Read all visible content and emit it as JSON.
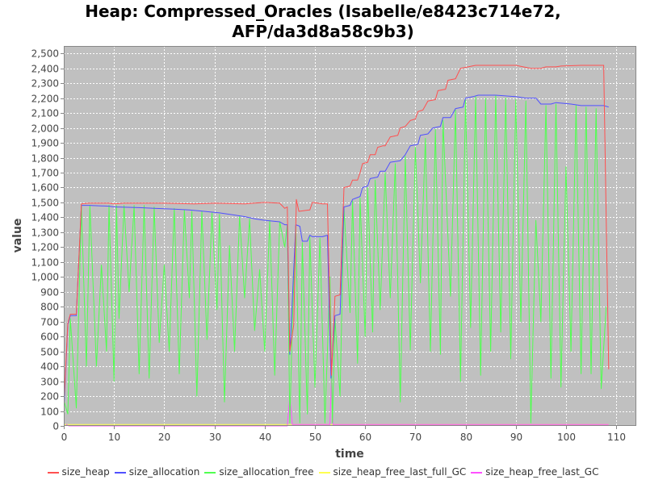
{
  "colors": {
    "size_heap": "#ff5050",
    "size_allocation": "#5050ff",
    "size_allocation_free": "#50ff50",
    "size_heap_free_last_full_GC": "#ffff50",
    "size_heap_free_last_GC": "#ff50ff",
    "plot_background": "#c0c0c0",
    "grid": "#ffffff"
  },
  "chart_data": {
    "type": "line",
    "title_lines": [
      "Heap: Compressed_Oracles (Isabelle/e8423c714e72,",
      "AFP/da3d8a58c9b3)"
    ],
    "xlabel": "time",
    "ylabel": "value",
    "xlim": [
      0,
      114
    ],
    "ylim": [
      0,
      2550
    ],
    "xticks": [
      0,
      10,
      20,
      30,
      40,
      50,
      60,
      70,
      80,
      90,
      100,
      110
    ],
    "xtick_labels": [
      "0",
      "10",
      "20",
      "30",
      "40",
      "50",
      "60",
      "70",
      "80",
      "90",
      "100",
      "110"
    ],
    "yticks": [
      0,
      100,
      200,
      300,
      400,
      500,
      600,
      700,
      800,
      900,
      1000,
      1100,
      1200,
      1300,
      1400,
      1500,
      1600,
      1700,
      1800,
      1900,
      2000,
      2100,
      2200,
      2300,
      2400,
      2500
    ],
    "ytick_labels": [
      "0",
      "100",
      "200",
      "300",
      "400",
      "500",
      "600",
      "700",
      "800",
      "900",
      "1,000",
      "1,100",
      "1,200",
      "1,300",
      "1,400",
      "1,500",
      "1,600",
      "1,700",
      "1,800",
      "1,900",
      "2,000",
      "2,100",
      "2,200",
      "2,300",
      "2,400",
      "2,500"
    ],
    "grid": true,
    "legend_position": "bottom",
    "series": [
      {
        "name": "size_heap",
        "points": [
          [
            0.1,
            200
          ],
          [
            0.8,
            690
          ],
          [
            1.3,
            750
          ],
          [
            2.5,
            750
          ],
          [
            3.5,
            1490
          ],
          [
            5,
            1495
          ],
          [
            9,
            1495
          ],
          [
            10,
            1490
          ],
          [
            12,
            1495
          ],
          [
            20,
            1495
          ],
          [
            26,
            1490
          ],
          [
            30,
            1495
          ],
          [
            36,
            1490
          ],
          [
            40,
            1500
          ],
          [
            43,
            1495
          ],
          [
            44,
            1460
          ],
          [
            44.5,
            1470
          ],
          [
            45,
            500
          ],
          [
            45.8,
            680
          ],
          [
            46.3,
            1520
          ],
          [
            46.8,
            1440
          ],
          [
            49,
            1450
          ],
          [
            49.5,
            1500
          ],
          [
            51.5,
            1490
          ],
          [
            52.5,
            1490
          ],
          [
            53.3,
            340
          ],
          [
            54,
            870
          ],
          [
            55,
            880
          ],
          [
            55.8,
            1600
          ],
          [
            57,
            1610
          ],
          [
            57.5,
            1650
          ],
          [
            58.5,
            1650
          ],
          [
            59,
            1700
          ],
          [
            59.5,
            1760
          ],
          [
            60.5,
            1770
          ],
          [
            61,
            1820
          ],
          [
            62,
            1820
          ],
          [
            62.5,
            1870
          ],
          [
            63.5,
            1880
          ],
          [
            64,
            1880
          ],
          [
            65,
            1940
          ],
          [
            66.5,
            1950
          ],
          [
            67,
            2000
          ],
          [
            68,
            2010
          ],
          [
            69,
            2050
          ],
          [
            70,
            2060
          ],
          [
            70.5,
            2110
          ],
          [
            71.5,
            2120
          ],
          [
            72.5,
            2180
          ],
          [
            74,
            2190
          ],
          [
            74.5,
            2250
          ],
          [
            76,
            2260
          ],
          [
            76.5,
            2320
          ],
          [
            78,
            2330
          ],
          [
            79,
            2400
          ],
          [
            80.5,
            2410
          ],
          [
            82,
            2420
          ],
          [
            90,
            2420
          ],
          [
            93,
            2400
          ],
          [
            95,
            2400
          ],
          [
            96,
            2410
          ],
          [
            98,
            2410
          ],
          [
            99,
            2415
          ],
          [
            103,
            2420
          ],
          [
            106,
            2420
          ],
          [
            107.5,
            2420
          ],
          [
            108.5,
            380
          ]
        ]
      },
      {
        "name": "size_allocation",
        "points": [
          [
            0.1,
            160
          ],
          [
            0.8,
            680
          ],
          [
            1.3,
            740
          ],
          [
            2.5,
            740
          ],
          [
            3.5,
            1480
          ],
          [
            5,
            1480
          ],
          [
            9,
            1475
          ],
          [
            10,
            1470
          ],
          [
            15,
            1465
          ],
          [
            18,
            1460
          ],
          [
            22,
            1455
          ],
          [
            25,
            1450
          ],
          [
            28,
            1440
          ],
          [
            31,
            1430
          ],
          [
            34,
            1415
          ],
          [
            36,
            1405
          ],
          [
            38,
            1390
          ],
          [
            40,
            1380
          ],
          [
            43,
            1370
          ],
          [
            44,
            1350
          ],
          [
            44.5,
            1350
          ],
          [
            45,
            480
          ],
          [
            46.2,
            1350
          ],
          [
            47,
            1340
          ],
          [
            47.5,
            1240
          ],
          [
            48.5,
            1240
          ],
          [
            49,
            1280
          ],
          [
            49.5,
            1270
          ],
          [
            51.5,
            1270
          ],
          [
            52.5,
            1280
          ],
          [
            53.2,
            320
          ],
          [
            54,
            740
          ],
          [
            55,
            750
          ],
          [
            55.8,
            1470
          ],
          [
            57,
            1480
          ],
          [
            57.5,
            1520
          ],
          [
            59,
            1540
          ],
          [
            59.5,
            1600
          ],
          [
            60.5,
            1610
          ],
          [
            61,
            1660
          ],
          [
            62.5,
            1670
          ],
          [
            63,
            1710
          ],
          [
            64,
            1710
          ],
          [
            65,
            1770
          ],
          [
            67,
            1780
          ],
          [
            68,
            1820
          ],
          [
            69,
            1880
          ],
          [
            70.5,
            1890
          ],
          [
            71,
            1950
          ],
          [
            72.5,
            1960
          ],
          [
            73.5,
            2000
          ],
          [
            75,
            2010
          ],
          [
            75.5,
            2070
          ],
          [
            77,
            2070
          ],
          [
            78,
            2130
          ],
          [
            79.5,
            2140
          ],
          [
            80,
            2200
          ],
          [
            81.5,
            2210
          ],
          [
            82.5,
            2220
          ],
          [
            86,
            2220
          ],
          [
            90,
            2210
          ],
          [
            92,
            2200
          ],
          [
            94,
            2200
          ],
          [
            95,
            2160
          ],
          [
            97,
            2160
          ],
          [
            98,
            2170
          ],
          [
            101,
            2160
          ],
          [
            103,
            2150
          ],
          [
            107.5,
            2150
          ],
          [
            108.5,
            2140
          ]
        ]
      },
      {
        "name": "size_allocation_free",
        "points": [
          [
            0.1,
            160
          ],
          [
            0.8,
            80
          ],
          [
            1.3,
            720
          ],
          [
            2.5,
            120
          ],
          [
            3.5,
            1480
          ],
          [
            4.5,
            400
          ],
          [
            5.2,
            1480
          ],
          [
            6.5,
            400
          ],
          [
            7.5,
            1080
          ],
          [
            8.5,
            500
          ],
          [
            9,
            1480
          ],
          [
            10,
            300
          ],
          [
            10.5,
            1480
          ],
          [
            11,
            720
          ],
          [
            12,
            1480
          ],
          [
            13,
            900
          ],
          [
            14,
            1480
          ],
          [
            15,
            350
          ],
          [
            16,
            1480
          ],
          [
            17,
            320
          ],
          [
            18,
            1470
          ],
          [
            19,
            560
          ],
          [
            20,
            1080
          ],
          [
            21,
            500
          ],
          [
            22,
            1460
          ],
          [
            23,
            350
          ],
          [
            24,
            1450
          ],
          [
            25,
            860
          ],
          [
            25.5,
            1440
          ],
          [
            26.5,
            200
          ],
          [
            27.5,
            1440
          ],
          [
            28.5,
            580
          ],
          [
            29.5,
            1430
          ],
          [
            30.5,
            780
          ],
          [
            31,
            1420
          ],
          [
            32,
            160
          ],
          [
            33,
            1210
          ],
          [
            34,
            500
          ],
          [
            35,
            1410
          ],
          [
            36,
            860
          ],
          [
            37,
            1390
          ],
          [
            38,
            640
          ],
          [
            39,
            1050
          ],
          [
            40,
            500
          ],
          [
            41,
            1380
          ],
          [
            42,
            340
          ],
          [
            43,
            1370
          ],
          [
            44,
            1200
          ],
          [
            44.5,
            1350
          ],
          [
            45,
            20
          ],
          [
            45.5,
            680
          ],
          [
            46.2,
            1340
          ],
          [
            47,
            20
          ],
          [
            47.5,
            1230
          ],
          [
            48.5,
            80
          ],
          [
            49,
            1270
          ],
          [
            50,
            260
          ],
          [
            51,
            1260
          ],
          [
            52,
            20
          ],
          [
            53,
            1000
          ],
          [
            53.5,
            20
          ],
          [
            54,
            720
          ],
          [
            55,
            200
          ],
          [
            55.8,
            1460
          ],
          [
            57,
            760
          ],
          [
            57.5,
            1510
          ],
          [
            58.5,
            420
          ],
          [
            59,
            1530
          ],
          [
            60,
            600
          ],
          [
            60.5,
            1600
          ],
          [
            61.5,
            630
          ],
          [
            62,
            1650
          ],
          [
            63,
            780
          ],
          [
            64,
            1700
          ],
          [
            65,
            860
          ],
          [
            66,
            1760
          ],
          [
            67,
            160
          ],
          [
            68,
            1810
          ],
          [
            69,
            510
          ],
          [
            70,
            1870
          ],
          [
            71,
            960
          ],
          [
            72,
            1930
          ],
          [
            73,
            500
          ],
          [
            74,
            1990
          ],
          [
            75,
            480
          ],
          [
            75.5,
            2050
          ],
          [
            77,
            870
          ],
          [
            78,
            2120
          ],
          [
            79,
            300
          ],
          [
            80,
            2190
          ],
          [
            81,
            660
          ],
          [
            82,
            2210
          ],
          [
            83,
            340
          ],
          [
            84,
            2200
          ],
          [
            85,
            500
          ],
          [
            86,
            2220
          ],
          [
            87,
            630
          ],
          [
            88,
            2200
          ],
          [
            89,
            450
          ],
          [
            90,
            2190
          ],
          [
            91,
            700
          ],
          [
            92,
            2180
          ],
          [
            93,
            20
          ],
          [
            94,
            1380
          ],
          [
            95,
            700
          ],
          [
            96,
            2150
          ],
          [
            97,
            320
          ],
          [
            98,
            2160
          ],
          [
            99,
            260
          ],
          [
            100,
            1740
          ],
          [
            101,
            500
          ],
          [
            102,
            2150
          ],
          [
            103,
            350
          ],
          [
            104,
            2140
          ],
          [
            105,
            350
          ],
          [
            106,
            2130
          ],
          [
            107,
            250
          ],
          [
            108,
            800
          ]
        ]
      },
      {
        "name": "size_heap_free_last_full_GC",
        "points": [
          [
            0.1,
            10
          ],
          [
            108.5,
            10
          ]
        ]
      },
      {
        "name": "size_heap_free_last_GC",
        "points": [
          [
            0.5,
            10
          ],
          [
            1,
            0
          ],
          [
            44.5,
            0
          ],
          [
            45,
            200
          ],
          [
            45.5,
            10
          ],
          [
            53,
            10
          ],
          [
            53.3,
            320
          ],
          [
            53.6,
            10
          ],
          [
            108.5,
            10
          ]
        ]
      }
    ]
  }
}
